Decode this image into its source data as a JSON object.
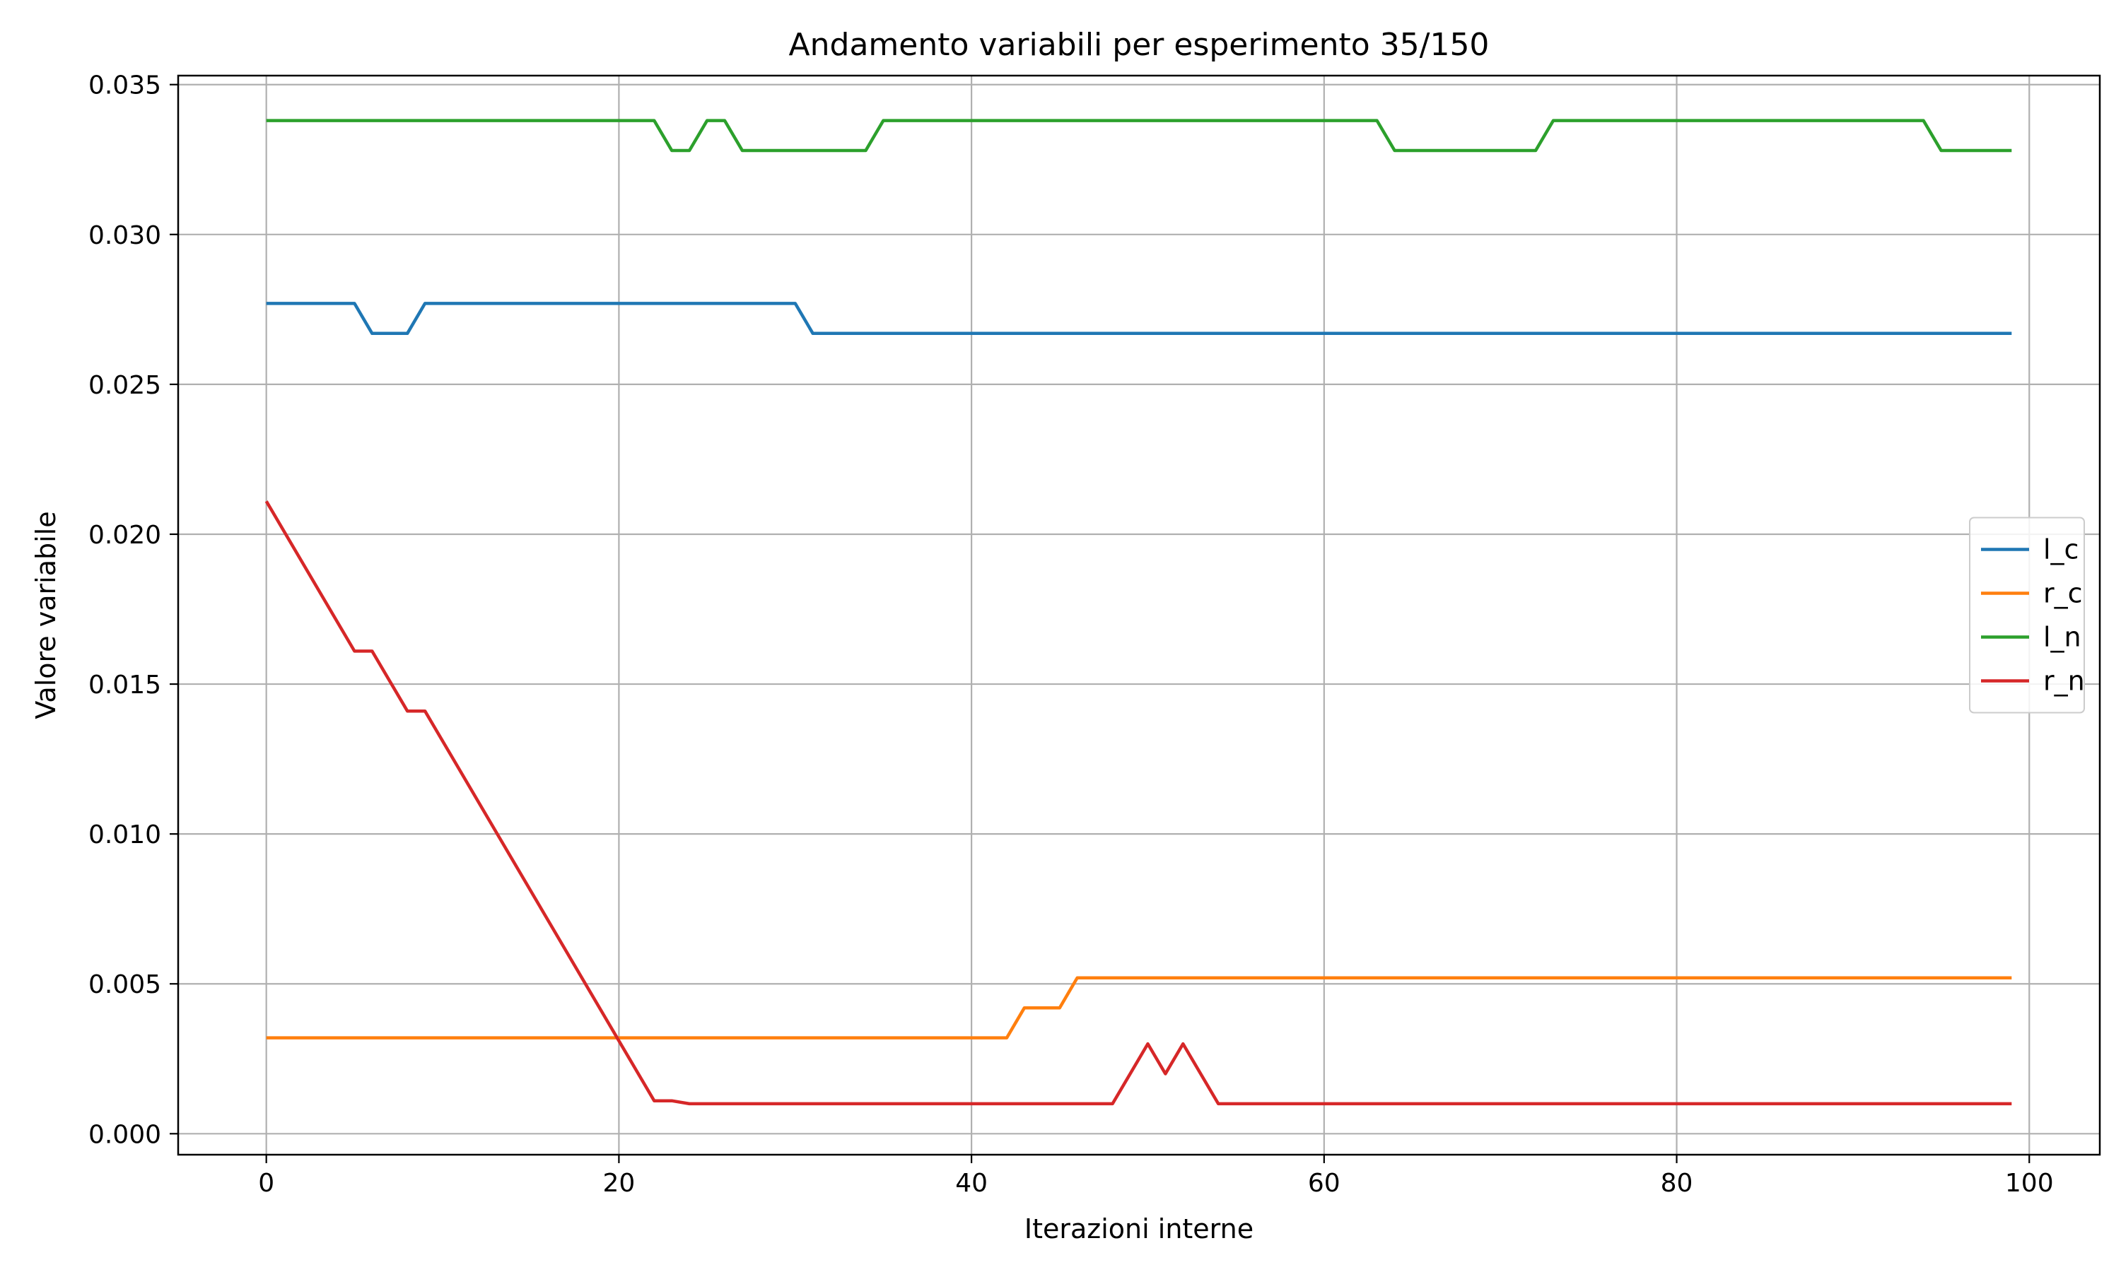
{
  "chart_data": {
    "type": "line",
    "title": "Andamento variabili per esperimento 35/150",
    "xlabel": "Iterazioni interne",
    "ylabel": "Valore variabile",
    "xlim": [
      -5,
      104
    ],
    "ylim": [
      -0.0007,
      0.0353
    ],
    "xticks": [
      0,
      20,
      40,
      60,
      80,
      100
    ],
    "xtick_labels": [
      "0",
      "20",
      "40",
      "60",
      "80",
      "100"
    ],
    "yticks": [
      0.0,
      0.005,
      0.01,
      0.015,
      0.02,
      0.025,
      0.03,
      0.035
    ],
    "ytick_labels": [
      "0.000",
      "0.005",
      "0.010",
      "0.015",
      "0.020",
      "0.025",
      "0.030",
      "0.035"
    ],
    "grid": true,
    "legend": {
      "position": "center-right"
    },
    "series": [
      {
        "name": "l_c",
        "color": "#1f77b4",
        "points": [
          [
            0,
            0.0277
          ],
          [
            5,
            0.0277
          ],
          [
            6,
            0.0267
          ],
          [
            8,
            0.0267
          ],
          [
            9,
            0.0277
          ],
          [
            30,
            0.0277
          ],
          [
            31,
            0.0267
          ],
          [
            99,
            0.0267
          ]
        ]
      },
      {
        "name": "r_c",
        "color": "#ff7f0e",
        "points": [
          [
            0,
            0.0032
          ],
          [
            42,
            0.0032
          ],
          [
            43,
            0.0042
          ],
          [
            45,
            0.0042
          ],
          [
            46,
            0.0052
          ],
          [
            99,
            0.0052
          ]
        ]
      },
      {
        "name": "l_n",
        "color": "#2ca02c",
        "points": [
          [
            0,
            0.0338
          ],
          [
            22,
            0.0338
          ],
          [
            23,
            0.0328
          ],
          [
            24,
            0.0328
          ],
          [
            25,
            0.0338
          ],
          [
            26,
            0.0338
          ],
          [
            27,
            0.0328
          ],
          [
            34,
            0.0328
          ],
          [
            35,
            0.0338
          ],
          [
            63,
            0.0338
          ],
          [
            64,
            0.0328
          ],
          [
            72,
            0.0328
          ],
          [
            73,
            0.0338
          ],
          [
            94,
            0.0338
          ],
          [
            95,
            0.0328
          ],
          [
            99,
            0.0328
          ]
        ]
      },
      {
        "name": "r_n",
        "color": "#d62728",
        "points": [
          [
            0,
            0.0211
          ],
          [
            5,
            0.0161
          ],
          [
            6,
            0.0161
          ],
          [
            8,
            0.0141
          ],
          [
            9,
            0.0141
          ],
          [
            22,
            0.0011
          ],
          [
            23,
            0.0011
          ],
          [
            24,
            0.001
          ],
          [
            48,
            0.001
          ],
          [
            50,
            0.003
          ],
          [
            51,
            0.002
          ],
          [
            52,
            0.003
          ],
          [
            54,
            0.001
          ],
          [
            99,
            0.001
          ]
        ]
      }
    ]
  }
}
